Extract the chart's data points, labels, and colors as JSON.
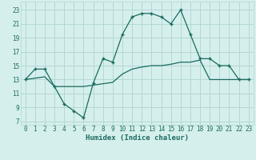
{
  "line1_x": [
    0,
    1,
    2,
    3,
    4,
    5,
    6,
    7,
    8,
    9,
    10,
    11,
    12,
    13,
    14,
    15,
    16,
    17,
    18,
    19,
    20,
    21,
    22,
    23
  ],
  "line1_y": [
    13,
    14.5,
    14.5,
    12,
    9.5,
    8.5,
    7.5,
    12.5,
    16,
    15.5,
    19.5,
    22,
    22.5,
    22.5,
    22,
    21,
    23,
    19.5,
    16,
    16,
    15,
    15,
    13,
    13
  ],
  "line2_x": [
    0,
    1,
    2,
    3,
    4,
    5,
    6,
    7,
    8,
    9,
    10,
    11,
    12,
    13,
    14,
    15,
    16,
    17,
    18,
    19,
    20,
    21,
    22,
    23
  ],
  "line2_y": [
    13,
    13.2,
    13.4,
    12,
    12,
    12,
    12,
    12.2,
    12.4,
    12.6,
    13.8,
    14.5,
    14.8,
    15,
    15,
    15.2,
    15.5,
    15.5,
    15.8,
    13,
    13,
    13,
    13,
    13
  ],
  "line_color": "#1a6b5e",
  "bg_color": "#d5efed",
  "grid_color": "#b2d8d4",
  "xlabel": "Humidex (Indice chaleur)",
  "yticks": [
    7,
    9,
    11,
    13,
    15,
    17,
    19,
    21,
    23
  ],
  "xticks": [
    0,
    1,
    2,
    3,
    4,
    5,
    6,
    7,
    8,
    9,
    10,
    11,
    12,
    13,
    14,
    15,
    16,
    17,
    18,
    19,
    20,
    21,
    22,
    23
  ],
  "xlim": [
    -0.5,
    23.5
  ],
  "ylim": [
    6.5,
    24.2
  ]
}
